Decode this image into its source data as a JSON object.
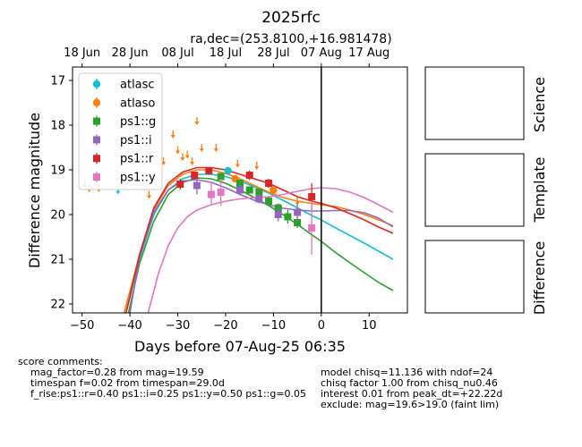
{
  "title": "2025rfc",
  "subtitle": "ra,dec=(253.8100,+16.981478)",
  "chart_data": {
    "type": "scatter",
    "xlabel": "Days before 07-Aug-25 06:35",
    "ylabel": "Difference magnitude",
    "xlim": [
      -52,
      18
    ],
    "ylim": [
      22.2,
      16.7
    ],
    "y_inverted": true,
    "xticks": [
      -50,
      -40,
      -30,
      -20,
      -10,
      0,
      10
    ],
    "yticks": [
      17,
      18,
      19,
      20,
      21,
      22
    ],
    "top_axis_ticks": [
      {
        "x": -50,
        "label": "18 Jun"
      },
      {
        "x": -40,
        "label": "28 Jun"
      },
      {
        "x": -30,
        "label": "08 Jul"
      },
      {
        "x": -20,
        "label": "18 Jul"
      },
      {
        "x": -10,
        "label": "28 Jul"
      },
      {
        "x": 0,
        "label": "07 Aug"
      },
      {
        "x": 10,
        "label": "17 Aug"
      }
    ],
    "vertical_line_x": 0,
    "legend_position": "upper-left",
    "series": [
      {
        "name": "atlasc",
        "color": "#17becf",
        "marker": "circle",
        "points": [
          {
            "x": -19.5,
            "y": 19.02,
            "err": 0.08
          }
        ],
        "upper_limits": [
          {
            "x": -42.5,
            "y": 19.45
          }
        ],
        "model": [
          [
            -40.8,
            22.2
          ],
          [
            -38,
            21.0
          ],
          [
            -35,
            20.0
          ],
          [
            -32,
            19.45
          ],
          [
            -29,
            19.2
          ],
          [
            -26,
            19.1
          ],
          [
            -23,
            19.1
          ],
          [
            -20,
            19.15
          ],
          [
            -17,
            19.25
          ],
          [
            -14,
            19.38
          ],
          [
            -11,
            19.52
          ],
          [
            -8,
            19.68
          ],
          [
            -5,
            19.85
          ],
          [
            -2,
            20.02
          ],
          [
            0,
            20.12
          ],
          [
            3,
            20.3
          ],
          [
            6,
            20.47
          ],
          [
            9,
            20.64
          ],
          [
            12,
            20.82
          ],
          [
            15,
            21.0
          ]
        ]
      },
      {
        "name": "atlaso",
        "color": "#ff7f0e",
        "marker": "circle",
        "points": [
          {
            "x": -18,
            "y": 19.2,
            "err": 0.06
          },
          {
            "x": -10,
            "y": 19.45,
            "err": 0.07
          }
        ],
        "upper_limits": [
          {
            "x": -49.5,
            "y": 19.3
          },
          {
            "x": -48.5,
            "y": 19.4
          },
          {
            "x": -46.5,
            "y": 19.4
          },
          {
            "x": -36,
            "y": 19.55
          },
          {
            "x": -33,
            "y": 18.8
          },
          {
            "x": -31,
            "y": 18.2
          },
          {
            "x": -30,
            "y": 18.55
          },
          {
            "x": -29,
            "y": 18.7
          },
          {
            "x": -28,
            "y": 18.65
          },
          {
            "x": -27,
            "y": 18.8
          },
          {
            "x": -26,
            "y": 17.9
          },
          {
            "x": -25,
            "y": 18.5
          },
          {
            "x": -22,
            "y": 18.5
          },
          {
            "x": -17.5,
            "y": 18.85
          },
          {
            "x": -13.5,
            "y": 18.9
          },
          {
            "x": -5,
            "y": 19.7
          }
        ],
        "model": [
          [
            -41.2,
            22.2
          ],
          [
            -38,
            20.9
          ],
          [
            -35,
            19.9
          ],
          [
            -32,
            19.35
          ],
          [
            -29,
            19.1
          ],
          [
            -26,
            19.0
          ],
          [
            -23,
            19.0
          ],
          [
            -20,
            19.08
          ],
          [
            -17,
            19.2
          ],
          [
            -14,
            19.35
          ],
          [
            -11,
            19.5
          ],
          [
            -8,
            19.62
          ],
          [
            -5,
            19.7
          ],
          [
            -2,
            19.75
          ],
          [
            0,
            19.78
          ],
          [
            3,
            19.82
          ],
          [
            6,
            19.9
          ],
          [
            9,
            20.0
          ],
          [
            12,
            20.12
          ],
          [
            15,
            20.25
          ]
        ]
      },
      {
        "name": "ps1::g",
        "color": "#2ca02c",
        "marker": "square",
        "points": [
          {
            "x": -21,
            "y": 19.15,
            "err": 0.08
          },
          {
            "x": -17,
            "y": 19.3,
            "err": 0.08
          },
          {
            "x": -15,
            "y": 19.45,
            "err": 0.07
          },
          {
            "x": -13,
            "y": 19.5,
            "err": 0.07
          },
          {
            "x": -11,
            "y": 19.7,
            "err": 0.1
          },
          {
            "x": -9,
            "y": 19.85,
            "err": 0.1
          },
          {
            "x": -7,
            "y": 20.05,
            "err": 0.15
          },
          {
            "x": -5,
            "y": 20.18,
            "err": 0.12
          }
        ],
        "upper_limits": [],
        "model": [
          [
            -40.3,
            22.2
          ],
          [
            -38,
            21.1
          ],
          [
            -35,
            20.15
          ],
          [
            -32,
            19.55
          ],
          [
            -29,
            19.28
          ],
          [
            -26,
            19.18
          ],
          [
            -23,
            19.2
          ],
          [
            -20,
            19.3
          ],
          [
            -17,
            19.45
          ],
          [
            -14,
            19.62
          ],
          [
            -11,
            19.8
          ],
          [
            -8,
            20.0
          ],
          [
            -5,
            20.22
          ],
          [
            -2,
            20.45
          ],
          [
            0,
            20.6
          ],
          [
            3,
            20.85
          ],
          [
            6,
            21.08
          ],
          [
            9,
            21.3
          ],
          [
            12,
            21.52
          ],
          [
            15,
            21.7
          ]
        ]
      },
      {
        "name": "ps1::i",
        "color": "#9467bd",
        "marker": "square",
        "points": [
          {
            "x": -26,
            "y": 19.35,
            "err": 0.2
          },
          {
            "x": -17,
            "y": 19.45,
            "err": 0.12
          },
          {
            "x": -13,
            "y": 19.65,
            "err": 0.1
          },
          {
            "x": -9,
            "y": 20.0,
            "err": 0.15
          },
          {
            "x": -5,
            "y": 19.95,
            "err": 0.2
          }
        ],
        "upper_limits": [],
        "model": [
          [
            -40,
            22.2
          ],
          [
            -38,
            20.95
          ],
          [
            -35,
            19.95
          ],
          [
            -32,
            19.45
          ],
          [
            -29,
            19.25
          ],
          [
            -26,
            19.22
          ],
          [
            -23,
            19.28
          ],
          [
            -20,
            19.4
          ],
          [
            -17,
            19.55
          ],
          [
            -14,
            19.68
          ],
          [
            -11,
            19.78
          ],
          [
            -8,
            19.86
          ],
          [
            -5,
            19.9
          ],
          [
            -2,
            19.92
          ],
          [
            0,
            19.92
          ],
          [
            3,
            19.91
          ],
          [
            6,
            19.91
          ],
          [
            9,
            19.96
          ],
          [
            12,
            20.08
          ],
          [
            15,
            20.28
          ]
        ]
      },
      {
        "name": "ps1::r",
        "color": "#d62728",
        "marker": "square",
        "points": [
          {
            "x": -29.5,
            "y": 19.32,
            "err": 0.12
          },
          {
            "x": -26.5,
            "y": 19.12,
            "err": 0.08
          },
          {
            "x": -23.5,
            "y": 19.02,
            "err": 0.08
          },
          {
            "x": -15,
            "y": 19.12,
            "err": 0.1
          },
          {
            "x": -11,
            "y": 19.3,
            "err": 0.1
          },
          {
            "x": -2,
            "y": 19.6,
            "err": 0.3
          }
        ],
        "upper_limits": [],
        "model": [
          [
            -40.8,
            22.2
          ],
          [
            -38,
            20.9
          ],
          [
            -35,
            19.85
          ],
          [
            -32,
            19.3
          ],
          [
            -29,
            19.05
          ],
          [
            -26,
            18.95
          ],
          [
            -23,
            18.95
          ],
          [
            -20,
            19.0
          ],
          [
            -17,
            19.1
          ],
          [
            -14,
            19.2
          ],
          [
            -11,
            19.3
          ],
          [
            -8,
            19.45
          ],
          [
            -5,
            19.6
          ],
          [
            -2,
            19.7
          ],
          [
            0,
            19.75
          ],
          [
            3,
            19.85
          ],
          [
            6,
            19.98
          ],
          [
            9,
            20.12
          ],
          [
            12,
            20.28
          ],
          [
            15,
            20.42
          ]
        ]
      },
      {
        "name": "ps1::y",
        "color": "#e377c2",
        "marker": "square",
        "points": [
          {
            "x": -23,
            "y": 19.55,
            "err": 0.25
          },
          {
            "x": -21,
            "y": 19.5,
            "err": 0.3
          },
          {
            "x": -2,
            "y": 20.3,
            "err": 0.6
          }
        ],
        "upper_limits": [],
        "model": [
          [
            -36.2,
            22.2
          ],
          [
            -34,
            21.3
          ],
          [
            -32,
            20.7
          ],
          [
            -30,
            20.3
          ],
          [
            -28,
            20.05
          ],
          [
            -26,
            19.9
          ],
          [
            -23,
            19.78
          ],
          [
            -20,
            19.7
          ],
          [
            -17,
            19.65
          ],
          [
            -14,
            19.62
          ],
          [
            -11,
            19.6
          ],
          [
            -8,
            19.55
          ],
          [
            -5,
            19.48
          ],
          [
            -2,
            19.42
          ],
          [
            0,
            19.4
          ],
          [
            3,
            19.42
          ],
          [
            6,
            19.5
          ],
          [
            9,
            19.62
          ],
          [
            12,
            19.78
          ],
          [
            15,
            19.95
          ]
        ]
      }
    ]
  },
  "side_panels": [
    {
      "label": "Science"
    },
    {
      "label": "Template"
    },
    {
      "label": "Difference"
    }
  ],
  "comments": {
    "header": "score comments:",
    "left_lines": [
      "mag_factor=0.28 from mag=19.59",
      "timespan f=0.02 from timespan=29.0d",
      "f_rise:ps1::r=0.40 ps1::i=0.25 ps1::y=0.50 ps1::g=0.05"
    ],
    "right_lines": [
      "model chisq=11.136 with ndof=24",
      "chisq factor 1.00 from chisq_nu0.46",
      "interest 0.01 from peak_dt=+22.22d",
      "exclude: mag=19.6>19.0 (faint lim)"
    ]
  }
}
